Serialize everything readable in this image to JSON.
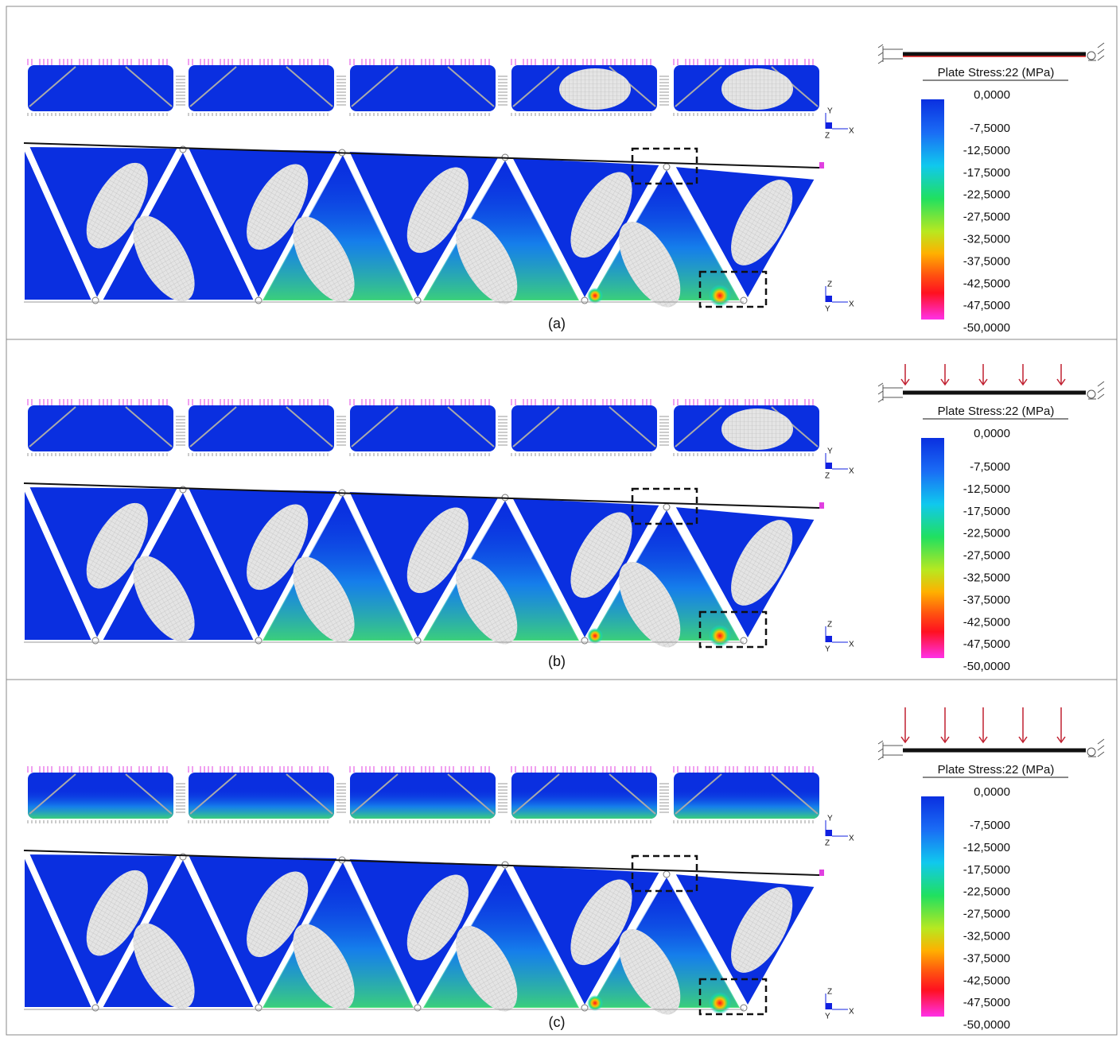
{
  "panels": [
    {
      "label": "(a)",
      "legend_title": "Plate Stress:22 (MPa)",
      "scale": [
        "0,0000",
        "-7,5000",
        "-12,5000",
        "-17,5000",
        "-22,5000",
        "-27,5000",
        "-32,5000",
        "-37,5000",
        "-42,5000",
        "-47,5000",
        "-50,0000"
      ],
      "plan_axes": {
        "up": "Y",
        "out": "Z",
        "right": "X"
      },
      "elevation_axes": {
        "up": "Z",
        "out": "Y",
        "right": "X"
      }
    },
    {
      "label": "(b)",
      "legend_title": "Plate Stress:22 (MPa)",
      "scale": [
        "0,0000",
        "-7,5000",
        "-12,5000",
        "-17,5000",
        "-22,5000",
        "-27,5000",
        "-32,5000",
        "-37,5000",
        "-42,5000",
        "-47,5000",
        "-50,0000"
      ],
      "plan_axes": {
        "up": "Y",
        "out": "Z",
        "right": "X"
      },
      "elevation_axes": {
        "up": "Z",
        "out": "Y",
        "right": "X"
      }
    },
    {
      "label": "(c)",
      "legend_title": "Plate Stress:22 (MPa)",
      "scale": [
        "0,0000",
        "-7,5000",
        "-12,5000",
        "-17,5000",
        "-22,5000",
        "-27,5000",
        "-32,5000",
        "-37,5000",
        "-42,5000",
        "-47,5000",
        "-50,0000"
      ],
      "plan_axes": {
        "up": "Y",
        "out": "Z",
        "right": "X"
      },
      "elevation_axes": {
        "up": "Z",
        "out": "Y",
        "right": "X"
      }
    }
  ]
}
